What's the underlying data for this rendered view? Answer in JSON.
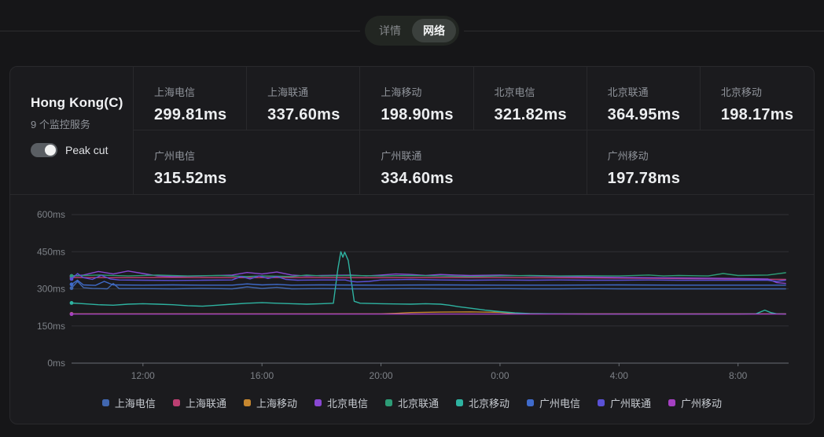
{
  "tabs": {
    "items": [
      {
        "label": "详情",
        "active": false
      },
      {
        "label": "网络",
        "active": true
      }
    ]
  },
  "panel": {
    "title": "Hong Kong(C)",
    "subtitle": "9 个监控服务",
    "toggle_label": "Peak cut",
    "toggle_on": true
  },
  "metrics": {
    "row1": [
      {
        "label": "上海电信",
        "value": "299.81ms"
      },
      {
        "label": "上海联通",
        "value": "337.60ms"
      },
      {
        "label": "上海移动",
        "value": "198.90ms"
      },
      {
        "label": "北京电信",
        "value": "321.82ms"
      },
      {
        "label": "北京联通",
        "value": "364.95ms"
      },
      {
        "label": "北京移动",
        "value": "198.17ms"
      }
    ],
    "row2": [
      {
        "label": "广州电信",
        "value": "315.52ms"
      },
      {
        "label": "广州联通",
        "value": "334.60ms"
      },
      {
        "label": "广州移动",
        "value": "197.78ms"
      }
    ]
  },
  "chart_data": {
    "type": "line",
    "title": "",
    "xlabel": "time",
    "ylabel": "latency (ms)",
    "grid": true,
    "legend_position": "bottom",
    "ylim": [
      0,
      600
    ],
    "yticks": [
      {
        "v": 0,
        "label": "0ms"
      },
      {
        "v": 150,
        "label": "150ms"
      },
      {
        "v": 300,
        "label": "300ms"
      },
      {
        "v": 450,
        "label": "450ms"
      },
      {
        "v": 600,
        "label": "600ms"
      }
    ],
    "xlim": [
      9.6,
      33.7
    ],
    "xticks": [
      {
        "t": 12,
        "label": "12:00"
      },
      {
        "t": 16,
        "label": "16:00"
      },
      {
        "t": 20,
        "label": "20:00"
      },
      {
        "t": 24,
        "label": "0:00"
      },
      {
        "t": 28,
        "label": "4:00"
      },
      {
        "t": 32,
        "label": "8:00"
      }
    ],
    "colors": {
      "grid": "#313135",
      "axis": "#6a6e74"
    },
    "series": [
      {
        "name": "上海电信",
        "color": "#4167b0",
        "current_ms": 299.81,
        "points": [
          [
            9.6,
            303
          ],
          [
            9.8,
            330
          ],
          [
            10,
            305
          ],
          [
            10.3,
            302
          ],
          [
            10.8,
            300
          ],
          [
            11,
            322
          ],
          [
            11.2,
            301
          ],
          [
            12,
            301
          ],
          [
            13,
            300
          ],
          [
            14,
            302
          ],
          [
            15,
            300
          ],
          [
            15.5,
            308
          ],
          [
            16,
            302
          ],
          [
            16.5,
            306
          ],
          [
            17,
            300
          ],
          [
            18,
            301
          ],
          [
            19,
            300
          ],
          [
            20,
            300
          ],
          [
            21,
            301
          ],
          [
            22,
            300
          ],
          [
            23,
            300
          ],
          [
            24,
            301
          ],
          [
            25,
            300
          ],
          [
            26,
            300
          ],
          [
            27,
            301
          ],
          [
            28,
            300
          ],
          [
            29,
            300
          ],
          [
            30,
            300
          ],
          [
            31,
            300
          ],
          [
            32,
            300
          ],
          [
            33,
            300
          ],
          [
            33.6,
            300
          ]
        ]
      },
      {
        "name": "上海联通",
        "color": "#bc3f72",
        "current_ms": 337.6,
        "points": [
          [
            9.6,
            346
          ],
          [
            11,
            345
          ],
          [
            13,
            346
          ],
          [
            15,
            345
          ],
          [
            17,
            346
          ],
          [
            19,
            345
          ],
          [
            21,
            345
          ],
          [
            23,
            346
          ],
          [
            25,
            345
          ],
          [
            27,
            344
          ],
          [
            29,
            343
          ],
          [
            31,
            341
          ],
          [
            32.5,
            339
          ],
          [
            33.6,
            338
          ]
        ]
      },
      {
        "name": "上海移动",
        "color": "#c6872f",
        "current_ms": 198.9,
        "points": [
          [
            9.6,
            199
          ],
          [
            15,
            199
          ],
          [
            20,
            199
          ],
          [
            20.5,
            201
          ],
          [
            21,
            204
          ],
          [
            22,
            206
          ],
          [
            23,
            207
          ],
          [
            24,
            205
          ],
          [
            24.5,
            200
          ],
          [
            26,
            199
          ],
          [
            30,
            199
          ],
          [
            33.6,
            199
          ]
        ]
      },
      {
        "name": "北京电信",
        "color": "#8847d2",
        "current_ms": 321.82,
        "points": [
          [
            9.6,
            352
          ],
          [
            10,
            356
          ],
          [
            10.5,
            370
          ],
          [
            11,
            360
          ],
          [
            11.5,
            372
          ],
          [
            12,
            362
          ],
          [
            12.5,
            352
          ],
          [
            13,
            350
          ],
          [
            14,
            352
          ],
          [
            15,
            356
          ],
          [
            15.5,
            366
          ],
          [
            16,
            360
          ],
          [
            16.5,
            368
          ],
          [
            17,
            356
          ],
          [
            17.5,
            352
          ],
          [
            18,
            354
          ],
          [
            19,
            356
          ],
          [
            19.5,
            352
          ],
          [
            20,
            356
          ],
          [
            20.5,
            360
          ],
          [
            21,
            358
          ],
          [
            21.5,
            354
          ],
          [
            22,
            358
          ],
          [
            22.5,
            356
          ],
          [
            23,
            354
          ],
          [
            24,
            356
          ],
          [
            25,
            352
          ],
          [
            26,
            350
          ],
          [
            27,
            348
          ],
          [
            28,
            346
          ],
          [
            29,
            345
          ],
          [
            30,
            344
          ],
          [
            31,
            343
          ],
          [
            32,
            342
          ],
          [
            33,
            340
          ],
          [
            33.3,
            325
          ],
          [
            33.6,
            322
          ]
        ]
      },
      {
        "name": "北京联通",
        "color": "#2d9c76",
        "current_ms": 364.95,
        "points": [
          [
            9.6,
            352
          ],
          [
            10.5,
            356
          ],
          [
            11.5,
            352
          ],
          [
            12.5,
            356
          ],
          [
            13.5,
            352
          ],
          [
            14.5,
            354
          ],
          [
            15.5,
            350
          ],
          [
            16,
            352
          ],
          [
            17,
            350
          ],
          [
            17.5,
            356
          ],
          [
            18,
            352
          ],
          [
            19,
            354
          ],
          [
            20,
            352
          ],
          [
            21,
            354
          ],
          [
            22,
            352
          ],
          [
            23,
            350
          ],
          [
            24,
            352
          ],
          [
            25,
            354
          ],
          [
            26,
            352
          ],
          [
            27,
            353
          ],
          [
            28,
            352
          ],
          [
            29,
            356
          ],
          [
            29.5,
            352
          ],
          [
            30,
            354
          ],
          [
            31,
            352
          ],
          [
            31.5,
            362
          ],
          [
            32,
            354
          ],
          [
            33,
            356
          ],
          [
            33.6,
            365
          ]
        ]
      },
      {
        "name": "北京移动",
        "color": "#2eb3a1",
        "current_ms": 198.17,
        "points": [
          [
            9.6,
            243
          ],
          [
            10,
            240
          ],
          [
            10.5,
            236
          ],
          [
            11,
            234
          ],
          [
            11.5,
            238
          ],
          [
            12,
            240
          ],
          [
            12.5,
            238
          ],
          [
            13,
            236
          ],
          [
            13.5,
            232
          ],
          [
            14,
            230
          ],
          [
            14.5,
            234
          ],
          [
            15,
            238
          ],
          [
            15.5,
            242
          ],
          [
            16,
            244
          ],
          [
            16.5,
            242
          ],
          [
            17,
            240
          ],
          [
            17.5,
            238
          ],
          [
            18,
            240
          ],
          [
            18.4,
            242
          ],
          [
            18.55,
            380
          ],
          [
            18.65,
            450
          ],
          [
            18.72,
            428
          ],
          [
            18.78,
            448
          ],
          [
            18.9,
            415
          ],
          [
            19.1,
            250
          ],
          [
            19.3,
            242
          ],
          [
            20,
            240
          ],
          [
            21,
            238
          ],
          [
            21.5,
            240
          ],
          [
            22,
            238
          ],
          [
            22.3,
            234
          ],
          [
            22.6,
            228
          ],
          [
            23,
            222
          ],
          [
            23.5,
            214
          ],
          [
            24,
            208
          ],
          [
            24.5,
            203
          ],
          [
            25,
            200
          ],
          [
            26,
            199
          ],
          [
            27,
            198
          ],
          [
            28,
            198
          ],
          [
            29,
            198
          ],
          [
            30,
            198
          ],
          [
            31,
            198
          ],
          [
            32,
            198
          ],
          [
            32.6,
            199
          ],
          [
            32.9,
            214
          ],
          [
            33.1,
            204
          ],
          [
            33.3,
            199
          ],
          [
            33.6,
            198
          ]
        ]
      },
      {
        "name": "广州电信",
        "color": "#3f6bcb",
        "current_ms": 315.52,
        "points": [
          [
            9.6,
            318
          ],
          [
            9.8,
            335
          ],
          [
            10,
            316
          ],
          [
            10.4,
            314
          ],
          [
            10.7,
            330
          ],
          [
            11,
            316
          ],
          [
            12,
            315
          ],
          [
            13,
            316
          ],
          [
            14,
            315
          ],
          [
            15,
            315
          ],
          [
            15.5,
            320
          ],
          [
            16,
            316
          ],
          [
            16.5,
            318
          ],
          [
            17,
            315
          ],
          [
            18,
            316
          ],
          [
            20,
            315
          ],
          [
            22,
            316
          ],
          [
            24,
            315
          ],
          [
            26,
            315
          ],
          [
            28,
            316
          ],
          [
            30,
            315
          ],
          [
            32,
            315
          ],
          [
            33.6,
            315
          ]
        ]
      },
      {
        "name": "广州联通",
        "color": "#5a51d6",
        "current_ms": 334.6,
        "points": [
          [
            9.6,
            340
          ],
          [
            9.8,
            362
          ],
          [
            10,
            345
          ],
          [
            10.3,
            338
          ],
          [
            10.6,
            355
          ],
          [
            10.9,
            340
          ],
          [
            11.2,
            336
          ],
          [
            12,
            335
          ],
          [
            13,
            334
          ],
          [
            14,
            335
          ],
          [
            15,
            336
          ],
          [
            15.3,
            350
          ],
          [
            15.6,
            340
          ],
          [
            15.9,
            352
          ],
          [
            16.2,
            342
          ],
          [
            16.5,
            350
          ],
          [
            16.8,
            338
          ],
          [
            17.2,
            335
          ],
          [
            18,
            336
          ],
          [
            18.8,
            336
          ],
          [
            19,
            330
          ],
          [
            19.2,
            328
          ],
          [
            19.6,
            330
          ],
          [
            20,
            336
          ],
          [
            21,
            338
          ],
          [
            22,
            336
          ],
          [
            23,
            335
          ],
          [
            24,
            336
          ],
          [
            25,
            335
          ],
          [
            26,
            336
          ],
          [
            27,
            335
          ],
          [
            28,
            335
          ],
          [
            29,
            336
          ],
          [
            30,
            335
          ],
          [
            31,
            335
          ],
          [
            32,
            335
          ],
          [
            33,
            335
          ],
          [
            33.3,
            330
          ],
          [
            33.6,
            335
          ]
        ]
      },
      {
        "name": "广州移动",
        "color": "#a540c2",
        "current_ms": 197.78,
        "points": [
          [
            9.6,
            198
          ],
          [
            14,
            198
          ],
          [
            18,
            198
          ],
          [
            22,
            198
          ],
          [
            26,
            198
          ],
          [
            30,
            198
          ],
          [
            33.6,
            198
          ]
        ]
      }
    ]
  }
}
